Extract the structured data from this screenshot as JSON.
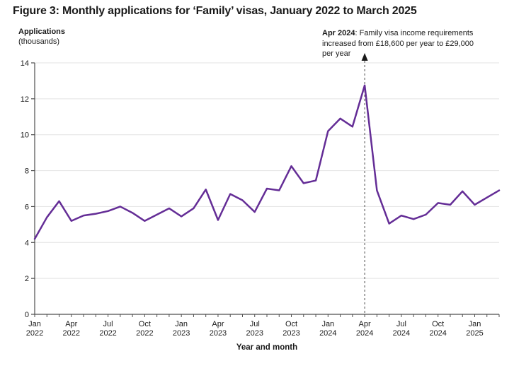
{
  "figure": {
    "title": "Figure 3: Monthly applications for ‘Family’ visas, January 2022 to March 2025",
    "y_axis_title": "Applications",
    "y_axis_subtitle": "(thousands)",
    "x_axis_title": "Year and month",
    "annotation": {
      "bold": "Apr 2024",
      "line1_rest": ": Family visa income requirements",
      "line2": "increased from £18,600 per year to £29,000",
      "line3": "per year"
    }
  },
  "chart_data": {
    "type": "line",
    "title": "Figure 3: Monthly applications for ‘Family’ visas, January 2022 to March 2025",
    "xlabel": "Year and month",
    "ylabel": "Applications (thousands)",
    "ylim": [
      0,
      14
    ],
    "yticks": [
      0,
      2,
      4,
      6,
      8,
      10,
      12,
      14
    ],
    "grid": "horizontal",
    "x_tick_label_every": 3,
    "line_color": "#642d96",
    "axis_color": "#4d4d4d",
    "gridline_color": "#e3e3e3",
    "text_color": "#1a1a1a",
    "x": [
      "Jan 2022",
      "Feb 2022",
      "Mar 2022",
      "Apr 2022",
      "May 2022",
      "Jun 2022",
      "Jul 2022",
      "Aug 2022",
      "Sep 2022",
      "Oct 2022",
      "Nov 2022",
      "Dec 2022",
      "Jan 2023",
      "Feb 2023",
      "Mar 2023",
      "Apr 2023",
      "May 2023",
      "Jun 2023",
      "Jul 2023",
      "Aug 2023",
      "Sep 2023",
      "Oct 2023",
      "Nov 2023",
      "Dec 2023",
      "Jan 2024",
      "Feb 2024",
      "Mar 2024",
      "Apr 2024",
      "May 2024",
      "Jun 2024",
      "Jul 2024",
      "Aug 2024",
      "Sep 2024",
      "Oct 2024",
      "Nov 2024",
      "Dec 2024",
      "Jan 2025",
      "Feb 2025",
      "Mar 2025"
    ],
    "series": [
      {
        "name": "Monthly Family visa applications (thousands)",
        "values": [
          4.2,
          5.4,
          6.3,
          5.2,
          5.5,
          5.6,
          5.75,
          6.0,
          5.65,
          5.2,
          5.55,
          5.9,
          5.45,
          5.9,
          6.95,
          5.25,
          6.7,
          6.35,
          5.7,
          7.0,
          6.9,
          8.25,
          7.3,
          7.45,
          10.2,
          10.9,
          10.45,
          12.75,
          6.9,
          5.05,
          5.5,
          5.3,
          5.55,
          6.2,
          6.1,
          6.85,
          6.1,
          6.5,
          6.9
        ]
      }
    ],
    "annotation_marker": {
      "x": "Apr 2024",
      "style": "dashed-vertical-line-with-up-arrow"
    }
  }
}
